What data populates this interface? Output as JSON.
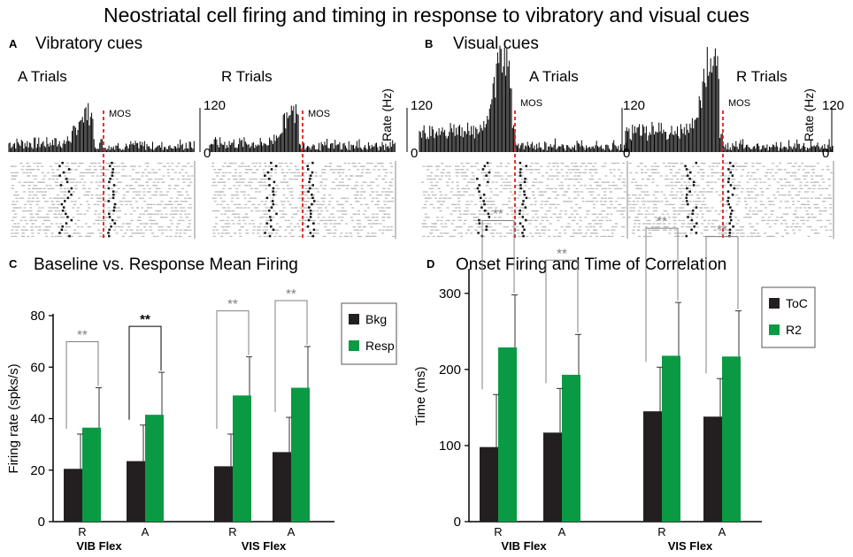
{
  "title": "Neostriatal cell firing and timing in response to vibratory and visual  cues",
  "panels": {
    "A": {
      "letter": "A",
      "title": "Vibratory cues",
      "left_label": "A Trials",
      "right_label": "R Trials",
      "mos_label": "MOS",
      "y_top": "120",
      "y_bottom": "0"
    },
    "B": {
      "letter": "B",
      "title": "Visual cues",
      "left_label": "A Trials",
      "right_label": "R Trials",
      "mos_label": "MOS",
      "y_top": "120",
      "y_bottom": "0",
      "rate_label": "Rate (Hz)"
    },
    "C": {
      "letter": "C",
      "title": "Baseline vs. Response Mean Firing"
    },
    "D": {
      "letter": "D",
      "title": "Onset Firing and Time of Correlation"
    }
  },
  "rate_label": "Rate (Hz)",
  "star": "**",
  "colors": {
    "dark": "#231f20",
    "green": "#0a9a44",
    "red": "#e0201b",
    "grey": "#808080"
  },
  "chart_data": [
    {
      "id": "C",
      "type": "bar",
      "title": "Baseline vs. Response Mean Firing",
      "ylabel": "Firing rate (spks/s)",
      "ylim": [
        0,
        80
      ],
      "yticks": [
        0,
        20,
        40,
        60,
        80
      ],
      "categories": [
        "R",
        "A",
        "R",
        "A"
      ],
      "groups": [
        "VIB  Flex",
        "VIS  Flex"
      ],
      "series": [
        {
          "name": "Bkg",
          "values": [
            20.5,
            23.5,
            21.5,
            27
          ],
          "errors": [
            13.5,
            14,
            12.5,
            13.5
          ]
        },
        {
          "name": "Resp",
          "values": [
            36.5,
            41.5,
            49,
            52
          ],
          "errors": [
            15.5,
            16.5,
            15,
            16
          ]
        }
      ],
      "significance": [
        "**",
        "**",
        "**",
        "**"
      ],
      "legend": "top-right"
    },
    {
      "id": "D",
      "type": "bar",
      "title": "Onset Firing and Time of Correlation",
      "ylabel": "Time (ms)",
      "ylim": [
        0,
        330
      ],
      "yticks": [
        0,
        100,
        200,
        300
      ],
      "categories": [
        "R",
        "A",
        "R",
        "A"
      ],
      "groups": [
        "VIB  Flex",
        "VIS  Flex"
      ],
      "series": [
        {
          "name": "ToC",
          "values": [
            98,
            117,
            145,
            138
          ],
          "errors": [
            69,
            58,
            58,
            50
          ]
        },
        {
          "name": "R2",
          "values": [
            229,
            193,
            218,
            217
          ],
          "errors": [
            69,
            53,
            70,
            60
          ]
        }
      ],
      "significance": [
        "**",
        "**",
        "**",
        "**"
      ],
      "legend": "top-right"
    }
  ]
}
